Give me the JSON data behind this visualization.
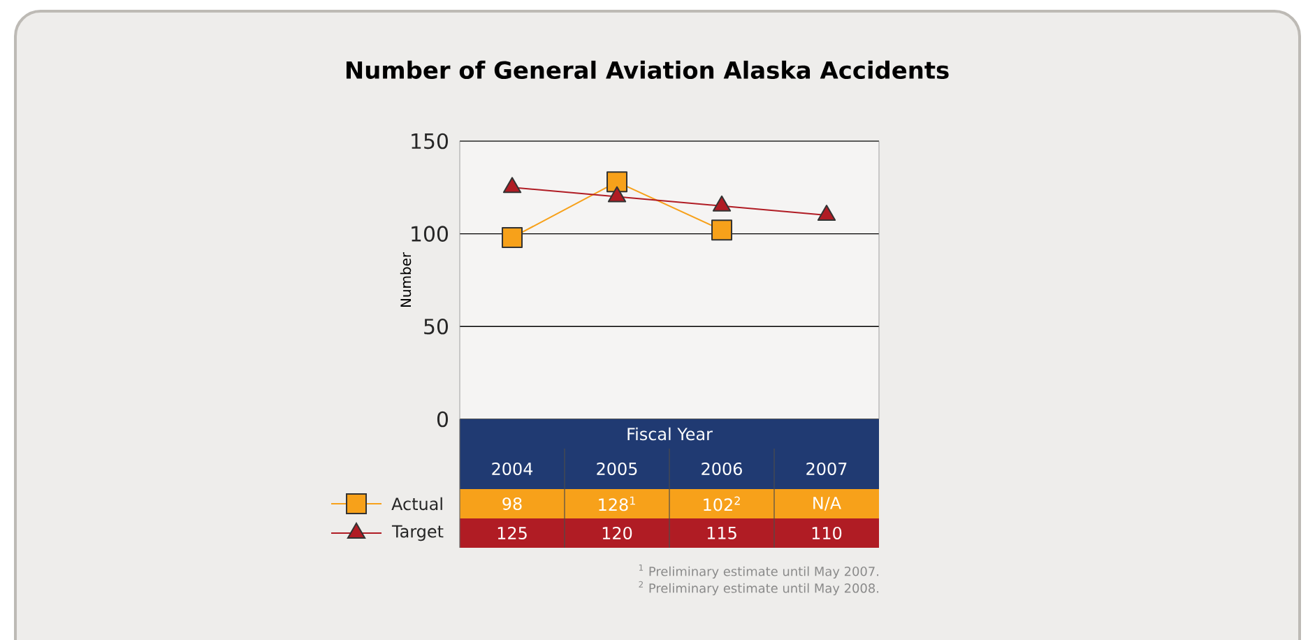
{
  "chart_data": {
    "type": "line",
    "title": "Number of General Aviation Alaska Accidents",
    "ylabel": "Number",
    "xlabel": "Fiscal Year",
    "categories": [
      "2004",
      "2005",
      "2006",
      "2007"
    ],
    "series": [
      {
        "name": "Actual",
        "color": "#f7a11a",
        "marker": "square",
        "values": [
          98,
          128,
          102,
          null
        ],
        "value_labels": [
          "98",
          "128$^{1}$",
          "102$^{2}$",
          "N/A"
        ]
      },
      {
        "name": "Target",
        "color": "#b01c24",
        "marker": "triangle",
        "values": [
          125,
          120,
          115,
          110
        ],
        "value_labels": [
          "125",
          "120",
          "115",
          "110"
        ]
      }
    ],
    "ylim": [
      0,
      150
    ],
    "yticks": [
      0,
      50,
      100,
      150
    ],
    "grid": "y",
    "legend": "bottom left",
    "annotations": [
      "$^{1}$ Preliminary estimate until May 2007.",
      "$^{2}$ Preliminary estimate until May 2008."
    ]
  }
}
